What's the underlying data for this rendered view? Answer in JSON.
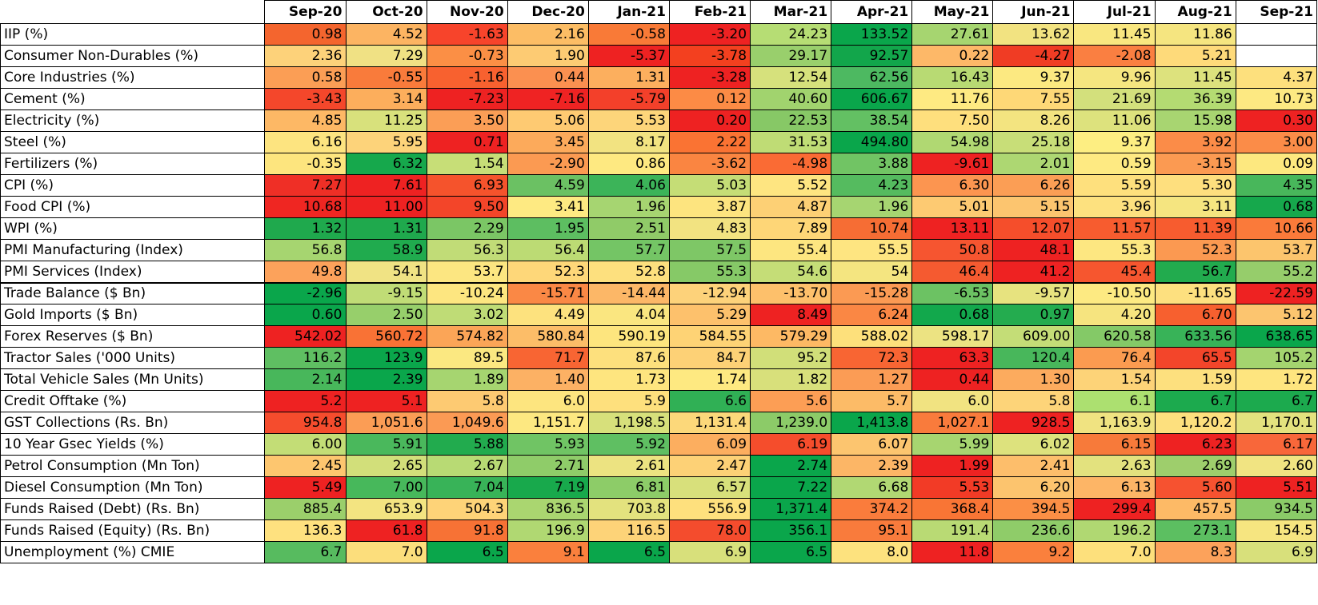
{
  "table": {
    "columns": [
      "Sep-20",
      "Oct-20",
      "Nov-20",
      "Dec-20",
      "Jan-21",
      "Feb-21",
      "Mar-21",
      "Apr-21",
      "May-21",
      "Jun-21",
      "Jul-21",
      "Aug-21",
      "Sep-21"
    ],
    "rows": [
      {
        "label": "IIP (%)",
        "values": [
          "0.98",
          "4.52",
          "-1.63",
          "2.16",
          "-0.58",
          "-3.20",
          "24.23",
          "133.52",
          "27.61",
          "13.62",
          "11.45",
          "11.86",
          ""
        ],
        "colors": [
          "#f4652e",
          "#fcb462",
          "#f7442b",
          "#fcbd65",
          "#f97a37",
          "#ee2222",
          "#b6dd74",
          "#0aa64b",
          "#a6d570",
          "#f2e381",
          "#f9e780",
          "#f5e580",
          "#ffffff"
        ]
      },
      {
        "label": "Consumer Non-Durables (%)",
        "values": [
          "2.36",
          "7.29",
          "-0.73",
          "1.90",
          "-5.37",
          "-3.78",
          "29.17",
          "92.57",
          "0.22",
          "-4.27",
          "-2.08",
          "5.21",
          ""
        ],
        "colors": [
          "#fdd27a",
          "#f0e184",
          "#fb8f45",
          "#fdcb73",
          "#ee2222",
          "#f3401f",
          "#99cf6c",
          "#12a64b",
          "#fdb868",
          "#f03c24",
          "#fa7f41",
          "#feda7a",
          "#ffffff"
        ]
      },
      {
        "label": "Core Industries (%)",
        "values": [
          "0.58",
          "-0.55",
          "-1.16",
          "0.44",
          "1.31",
          "-3.28",
          "12.54",
          "62.56",
          "16.43",
          "9.37",
          "9.96",
          "11.45",
          "4.37"
        ],
        "colors": [
          "#fb9e55",
          "#f97b3b",
          "#f8612f",
          "#fb9050",
          "#fcaf5e",
          "#ee2222",
          "#d6e17c",
          "#4db961",
          "#b8da73",
          "#fce981",
          "#f5e680",
          "#dde27d",
          "#fde07d"
        ]
      },
      {
        "label": "Cement (%)",
        "values": [
          "-3.43",
          "3.14",
          "-7.23",
          "-7.16",
          "-5.79",
          "0.12",
          "40.60",
          "606.67",
          "11.76",
          "7.55",
          "21.69",
          "36.39",
          "10.73"
        ],
        "colors": [
          "#f4472b",
          "#fcae5c",
          "#ee2222",
          "#ef2323",
          "#f3402a",
          "#fc8b45",
          "#a1d36e",
          "#0aa64b",
          "#feea82",
          "#fed877",
          "#d3e07c",
          "#b4db72",
          "#fde982"
        ]
      },
      {
        "label": "Electricity (%)",
        "values": [
          "4.85",
          "11.25",
          "3.50",
          "5.06",
          "5.53",
          "0.20",
          "22.53",
          "38.54",
          "7.50",
          "8.26",
          "11.06",
          "15.98",
          "0.30"
        ],
        "colors": [
          "#fdb865",
          "#d8e17c",
          "#fb9e56",
          "#feca72",
          "#fdd57a",
          "#ee2222",
          "#87c866",
          "#63c063",
          "#fedf7d",
          "#f3e480",
          "#dde27d",
          "#a8d571",
          "#ee2222"
        ]
      },
      {
        "label": "Steel (%)",
        "values": [
          "6.16",
          "5.95",
          "0.71",
          "3.45",
          "8.17",
          "2.22",
          "31.53",
          "494.80",
          "54.98",
          "25.18",
          "9.37",
          "3.92",
          "3.00"
        ],
        "colors": [
          "#fde480",
          "#fdd37a",
          "#ee2222",
          "#fcaa5b",
          "#f2e381",
          "#fa7333",
          "#bfdc75",
          "#0aa64b",
          "#b0d872",
          "#c8de78",
          "#fdee82",
          "#fb8c48",
          "#fb8c48"
        ]
      },
      {
        "label": "Fertilizers (%)",
        "values": [
          "-0.35",
          "6.32",
          "1.54",
          "-2.90",
          "0.86",
          "-3.62",
          "-4.98",
          "3.88",
          "-9.61",
          "2.01",
          "0.59",
          "-3.15",
          "0.09"
        ],
        "colors": [
          "#fde57e",
          "#16a84c",
          "#c7de77",
          "#fb9a52",
          "#fee981",
          "#fa8541",
          "#fa6b34",
          "#71c464",
          "#ee2222",
          "#add772",
          "#feea82",
          "#fb9a52",
          "#fde87f"
        ]
      },
      {
        "label": "CPI (%)",
        "values": [
          "7.27",
          "7.61",
          "6.93",
          "4.59",
          "4.06",
          "5.03",
          "5.52",
          "4.23",
          "6.30",
          "6.26",
          "5.59",
          "5.30",
          "4.35"
        ],
        "colors": [
          "#ef2f26",
          "#ee2222",
          "#f5532c",
          "#6bc163",
          "#3cb459",
          "#c5dd76",
          "#fee581",
          "#55bb5f",
          "#fc9550",
          "#fb9e55",
          "#fee07d",
          "#fedf7e",
          "#48b75b"
        ]
      },
      {
        "label": "Food CPI (%)",
        "values": [
          "10.68",
          "11.00",
          "9.50",
          "3.41",
          "1.96",
          "3.87",
          "4.87",
          "1.96",
          "5.01",
          "5.15",
          "3.96",
          "3.11",
          "0.68"
        ],
        "colors": [
          "#ef2622",
          "#ee2222",
          "#f34529",
          "#feea82",
          "#a6d571",
          "#fde47f",
          "#fdd075",
          "#a6d571",
          "#fdca72",
          "#fcc56f",
          "#fde17f",
          "#f5e580",
          "#16a84c"
        ]
      },
      {
        "label": "WPI (%)",
        "values": [
          "1.32",
          "1.31",
          "2.29",
          "1.95",
          "2.51",
          "4.83",
          "7.89",
          "10.74",
          "13.11",
          "12.07",
          "11.57",
          "11.39",
          "10.66"
        ],
        "colors": [
          "#1fa94d",
          "#1fa94d",
          "#7bc665",
          "#5dbe61",
          "#90cb68",
          "#f2e381",
          "#fed677",
          "#f66d34",
          "#ee2222",
          "#f54e2b",
          "#f75c2f",
          "#f75c2f",
          "#fa7a3a"
        ]
      },
      {
        "label": "PMI Manufacturing (Index)",
        "values": [
          "56.8",
          "58.9",
          "56.3",
          "56.4",
          "57.7",
          "57.5",
          "55.4",
          "55.5",
          "50.8",
          "48.1",
          "55.3",
          "52.3",
          "53.7"
        ],
        "colors": [
          "#a6d570",
          "#20ab4e",
          "#c1dc77",
          "#bcdb74",
          "#74c565",
          "#7ec766",
          "#fde680",
          "#fee581",
          "#f65530",
          "#ee2222",
          "#fde781",
          "#fb9951",
          "#fcc56d"
        ]
      },
      {
        "label": "PMI Services (Index)",
        "values": [
          "49.8",
          "54.1",
          "53.7",
          "52.3",
          "52.8",
          "55.3",
          "54.6",
          "54",
          "46.4",
          "41.2",
          "45.4",
          "56.7",
          "55.2"
        ],
        "colors": [
          "#fca25b",
          "#f0e384",
          "#fce681",
          "#fed779",
          "#fde07e",
          "#86c967",
          "#c5dd77",
          "#f4e580",
          "#f55a30",
          "#ee2222",
          "#f6562f",
          "#22ab4e",
          "#96cd6b"
        ]
      },
      {
        "label": "Trade Balance ($ Bn)",
        "values": [
          "-2.96",
          "-9.15",
          "-10.24",
          "-15.71",
          "-14.44",
          "-12.94",
          "-13.70",
          "-15.28",
          "-6.53",
          "-9.57",
          "-10.50",
          "-11.65",
          "-22.59"
        ],
        "colors": [
          "#0aa64b",
          "#c0dc76",
          "#fde680",
          "#fa8845",
          "#fcb767",
          "#fdd27a",
          "#fdc06b",
          "#fb9a53",
          "#6cc263",
          "#e7e37f",
          "#fdea82",
          "#fde07f",
          "#ee2222"
        ]
      },
      {
        "label": "Gold Imports ($ Bn)",
        "values": [
          "0.60",
          "2.50",
          "3.02",
          "4.49",
          "4.04",
          "5.29",
          "8.49",
          "6.24",
          "0.68",
          "0.97",
          "4.20",
          "6.70",
          "5.12"
        ],
        "colors": [
          "#0aa64b",
          "#97cf6b",
          "#bfdc76",
          "#fde27e",
          "#fae680",
          "#fdc16c",
          "#ee2222",
          "#fa8744",
          "#12a84c",
          "#24ac4f",
          "#f6e47f",
          "#f7602f",
          "#fcc56f"
        ]
      },
      {
        "label": "Forex Reserves ($ Bn)",
        "values": [
          "542.02",
          "560.72",
          "574.82",
          "580.84",
          "590.19",
          "584.55",
          "579.29",
          "588.02",
          "598.17",
          "609.00",
          "620.58",
          "633.56",
          "638.65"
        ],
        "colors": [
          "#ee2222",
          "#f97235",
          "#fba557",
          "#fcbd68",
          "#fde57e",
          "#fed375",
          "#fdb964",
          "#fde07b",
          "#ece382",
          "#c4dd77",
          "#84c967",
          "#38b358",
          "#0aa64b"
        ]
      },
      {
        "label": "Tractor Sales ('000 Units)",
        "values": [
          "116.2",
          "123.9",
          "89.5",
          "71.7",
          "87.6",
          "84.7",
          "95.2",
          "72.3",
          "63.3",
          "120.4",
          "76.4",
          "65.5",
          "105.2"
        ],
        "colors": [
          "#5fbf62",
          "#0aa64b",
          "#fbe881",
          "#f86533",
          "#fde07d",
          "#fdd176",
          "#d1df79",
          "#f86533",
          "#ee2222",
          "#48b75b",
          "#fb9b50",
          "#f3452a",
          "#a4d46f"
        ]
      },
      {
        "label": "Total Vehicle Sales (Mn Units)",
        "values": [
          "2.14",
          "2.39",
          "1.89",
          "1.40",
          "1.73",
          "1.74",
          "1.82",
          "1.27",
          "0.44",
          "1.30",
          "1.54",
          "1.59",
          "1.72"
        ],
        "colors": [
          "#48b75b",
          "#0aa64b",
          "#a6d570",
          "#fcb164",
          "#fee57f",
          "#fee981",
          "#d8e07b",
          "#fb9c55",
          "#ee2222",
          "#fcab5e",
          "#fdd378",
          "#fde07e",
          "#fee57f"
        ]
      },
      {
        "label": "Credit Offtake (%)",
        "values": [
          "5.2",
          "5.1",
          "5.8",
          "6.0",
          "5.9",
          "6.6",
          "5.6",
          "5.7",
          "6.0",
          "5.8",
          "6.1",
          "6.7",
          "6.7"
        ],
        "colors": [
          "#ee2222",
          "#ee2222",
          "#fdca72",
          "#fde57f",
          "#fee07d",
          "#30b055",
          "#fc9e55",
          "#fcbb67",
          "#f1e381",
          "#fdd479",
          "#ace070",
          "#1caa4e",
          "#1caa4e"
        ]
      },
      {
        "label": "GST Collections (Rs. Bn)",
        "values": [
          "954.8",
          "1,051.6",
          "1,049.6",
          "1,151.7",
          "1,198.5",
          "1,131.4",
          "1,239.0",
          "1,413.8",
          "1,027.1",
          "928.5",
          "1,163.9",
          "1,120.2",
          "1,170.1"
        ],
        "colors": [
          "#f54c2d",
          "#fb9d55",
          "#fb9a54",
          "#fde881",
          "#d7e07b",
          "#fcd87a",
          "#8ccb68",
          "#0aa64b",
          "#f97b3c",
          "#ee2222",
          "#f0e381",
          "#fde07e",
          "#e3e27e"
        ]
      },
      {
        "label": "10 Year Gsec Yields (%)",
        "values": [
          "6.00",
          "5.91",
          "5.88",
          "5.93",
          "5.92",
          "6.09",
          "6.19",
          "6.07",
          "5.99",
          "6.02",
          "6.15",
          "6.23",
          "6.17"
        ],
        "colors": [
          "#c3dd76",
          "#4ab85c",
          "#22ab4e",
          "#70c464",
          "#5fbf62",
          "#fcae5f",
          "#f54d2c",
          "#fcc56f",
          "#a7d570",
          "#dde27d",
          "#f77a3a",
          "#ee2222",
          "#f8673a"
        ]
      },
      {
        "label": "Petrol Consumption (Mn Ton)",
        "values": [
          "2.45",
          "2.65",
          "2.67",
          "2.71",
          "2.61",
          "2.47",
          "2.74",
          "2.39",
          "1.99",
          "2.41",
          "2.63",
          "2.69",
          "2.60"
        ],
        "colors": [
          "#fdc66f",
          "#d2df7a",
          "#b8da74",
          "#8fcc69",
          "#ece381",
          "#fdd176",
          "#0aa64b",
          "#fcb666",
          "#ee2222",
          "#fdbe6b",
          "#e3e27e",
          "#9ece6c",
          "#f1e482"
        ]
      },
      {
        "label": "Diesel Consumption (Mn Ton)",
        "values": [
          "5.49",
          "7.00",
          "7.04",
          "7.19",
          "6.81",
          "6.57",
          "7.22",
          "6.68",
          "5.53",
          "6.20",
          "6.13",
          "5.60",
          "5.51"
        ],
        "colors": [
          "#ee2222",
          "#47b85b",
          "#38b358",
          "#18a94c",
          "#8dcc68",
          "#d8e07b",
          "#0aa64b",
          "#b1d873",
          "#f23b26",
          "#fcc46e",
          "#fdb566",
          "#f65230",
          "#ee2222"
        ]
      },
      {
        "label": "Funds Raised (Debt) (Rs. Bn)",
        "values": [
          "885.4",
          "653.9",
          "504.3",
          "836.5",
          "703.8",
          "556.9",
          "1,371.4",
          "374.2",
          "368.4",
          "394.5",
          "299.4",
          "457.5",
          "934.5"
        ],
        "colors": [
          "#9bcf6b",
          "#f3e481",
          "#fed378",
          "#aad670",
          "#e3e27e",
          "#fee07d",
          "#0aa64b",
          "#fa7c3c",
          "#f97535",
          "#fb8f45",
          "#ee2222",
          "#fdba66",
          "#8bcb68"
        ]
      },
      {
        "label": "Funds Raised (Equity) (Rs. Bn)",
        "values": [
          "136.3",
          "61.8",
          "91.8",
          "196.9",
          "116.5",
          "78.0",
          "356.1",
          "95.1",
          "191.4",
          "236.6",
          "196.2",
          "273.1",
          "154.5"
        ],
        "colors": [
          "#fee17f",
          "#ee2222",
          "#f77235",
          "#b0d872",
          "#fdd378",
          "#f44c2d",
          "#0aa64b",
          "#f97b3c",
          "#b9da74",
          "#8fcc69",
          "#b0d872",
          "#5cbf61",
          "#f6e580"
        ]
      },
      {
        "label": "Unemployment (%) CMIE",
        "values": [
          "6.7",
          "7.0",
          "6.5",
          "9.1",
          "6.5",
          "6.9",
          "6.5",
          "8.0",
          "11.8",
          "9.2",
          "7.0",
          "8.3",
          "6.9"
        ],
        "colors": [
          "#57bb5f",
          "#fcde7c",
          "#0aa64b",
          "#fa803d",
          "#0aa64b",
          "#d8e07b",
          "#0aa64b",
          "#fde27e",
          "#ee2222",
          "#fa803d",
          "#fde07c",
          "#fca25b",
          "#d8e07b"
        ]
      }
    ]
  }
}
